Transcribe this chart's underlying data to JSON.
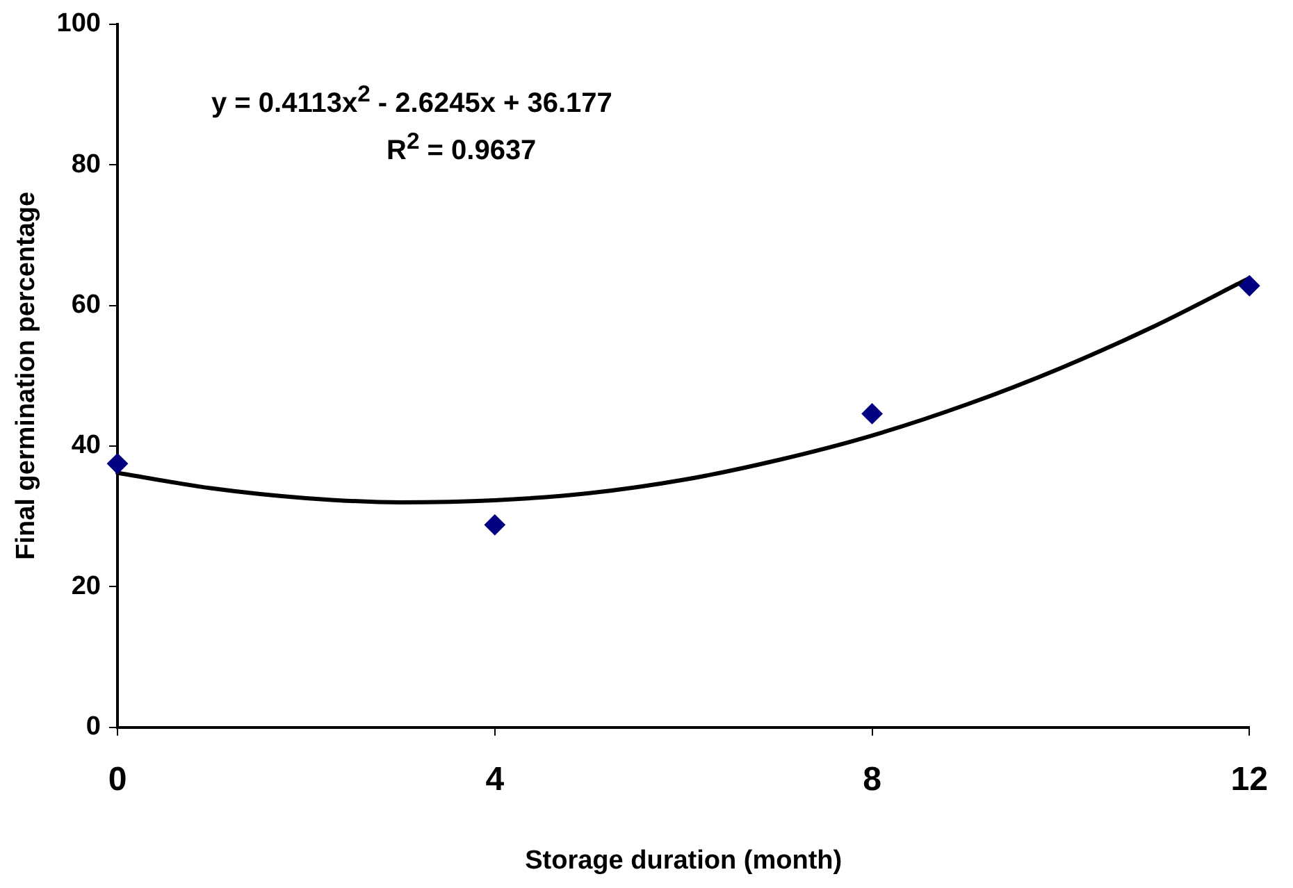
{
  "chart_data": {
    "type": "scatter",
    "xlabel": "Storage duration (month)",
    "ylabel": "Final germination percentage",
    "xlim": [
      0,
      12
    ],
    "xticks": [
      0,
      4,
      8,
      12
    ],
    "ylim": [
      0,
      100
    ],
    "yticks": [
      0,
      20,
      40,
      60,
      80,
      100
    ],
    "grid": false,
    "annotations": [
      "y = 0.4113x$^{2}$ - 2.6245x + 36.177",
      "R$^{2}$ = 0.9637"
    ],
    "series": [
      {
        "type": "scatter",
        "x": [
          0,
          4,
          8,
          12
        ],
        "values": [
          37.5,
          28.8,
          44.6,
          62.8
        ],
        "color": "#000080",
        "marker": "diamond"
      },
      {
        "type": "line",
        "x": [
          0,
          1,
          2,
          3,
          4,
          5,
          6,
          7,
          8,
          9,
          10,
          11,
          12
        ],
        "values": [
          36.2,
          34.0,
          32.6,
          32.0,
          32.3,
          33.3,
          35.2,
          38.0,
          41.5,
          45.9,
          51.1,
          57.1,
          63.9
        ],
        "color": "#000000",
        "marker": "none",
        "line_style": "solid"
      }
    ]
  }
}
